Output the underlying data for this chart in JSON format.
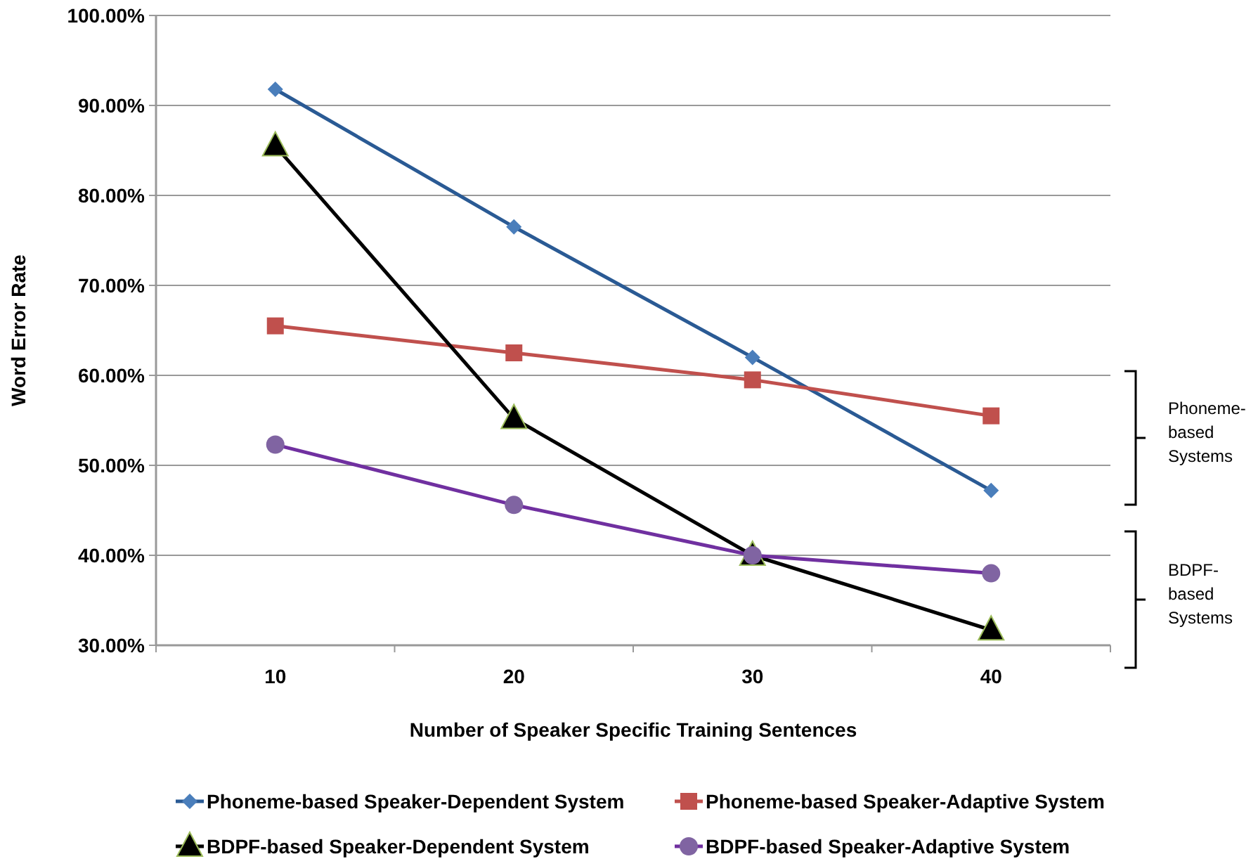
{
  "chart_data": {
    "type": "line",
    "xlabel": "Number of Speaker Specific Training Sentences",
    "ylabel": "Word Error Rate",
    "categories": [
      "10",
      "20",
      "30",
      "40"
    ],
    "series": [
      {
        "name": "Phoneme-based Speaker-Dependent System",
        "color": "#2a5a94",
        "marker": "diamond",
        "values": [
          91.8,
          76.5,
          62.0,
          47.2
        ]
      },
      {
        "name": "Phoneme-based Speaker-Adaptive System",
        "color": "#c0504d",
        "marker": "square",
        "values": [
          65.5,
          62.5,
          59.5,
          55.5
        ]
      },
      {
        "name": "BDPF-based Speaker-Dependent System",
        "color": "#000000",
        "marker": "triangle",
        "values": [
          85.5,
          55.2,
          40.0,
          31.7
        ]
      },
      {
        "name": "BDPF-based Speaker-Adaptive System",
        "color": "#7030a0",
        "marker": "circle",
        "values": [
          52.3,
          45.6,
          40.0,
          38.0
        ]
      }
    ],
    "ylim": [
      30,
      100
    ],
    "yticks": [
      {
        "value": 30,
        "label": "30.00%"
      },
      {
        "value": 40,
        "label": "40.00%"
      },
      {
        "value": 50,
        "label": "50.00%"
      },
      {
        "value": 60,
        "label": "60.00%"
      },
      {
        "value": 70,
        "label": "70.00%"
      },
      {
        "value": 80,
        "label": "80.00%"
      },
      {
        "value": 90,
        "label": "90.00%"
      },
      {
        "value": 100,
        "label": "100.00%"
      }
    ],
    "grid": "y",
    "legend": "bottom",
    "annotations": [
      "Phoneme-based Systems",
      "BDPF-based Systems"
    ]
  }
}
